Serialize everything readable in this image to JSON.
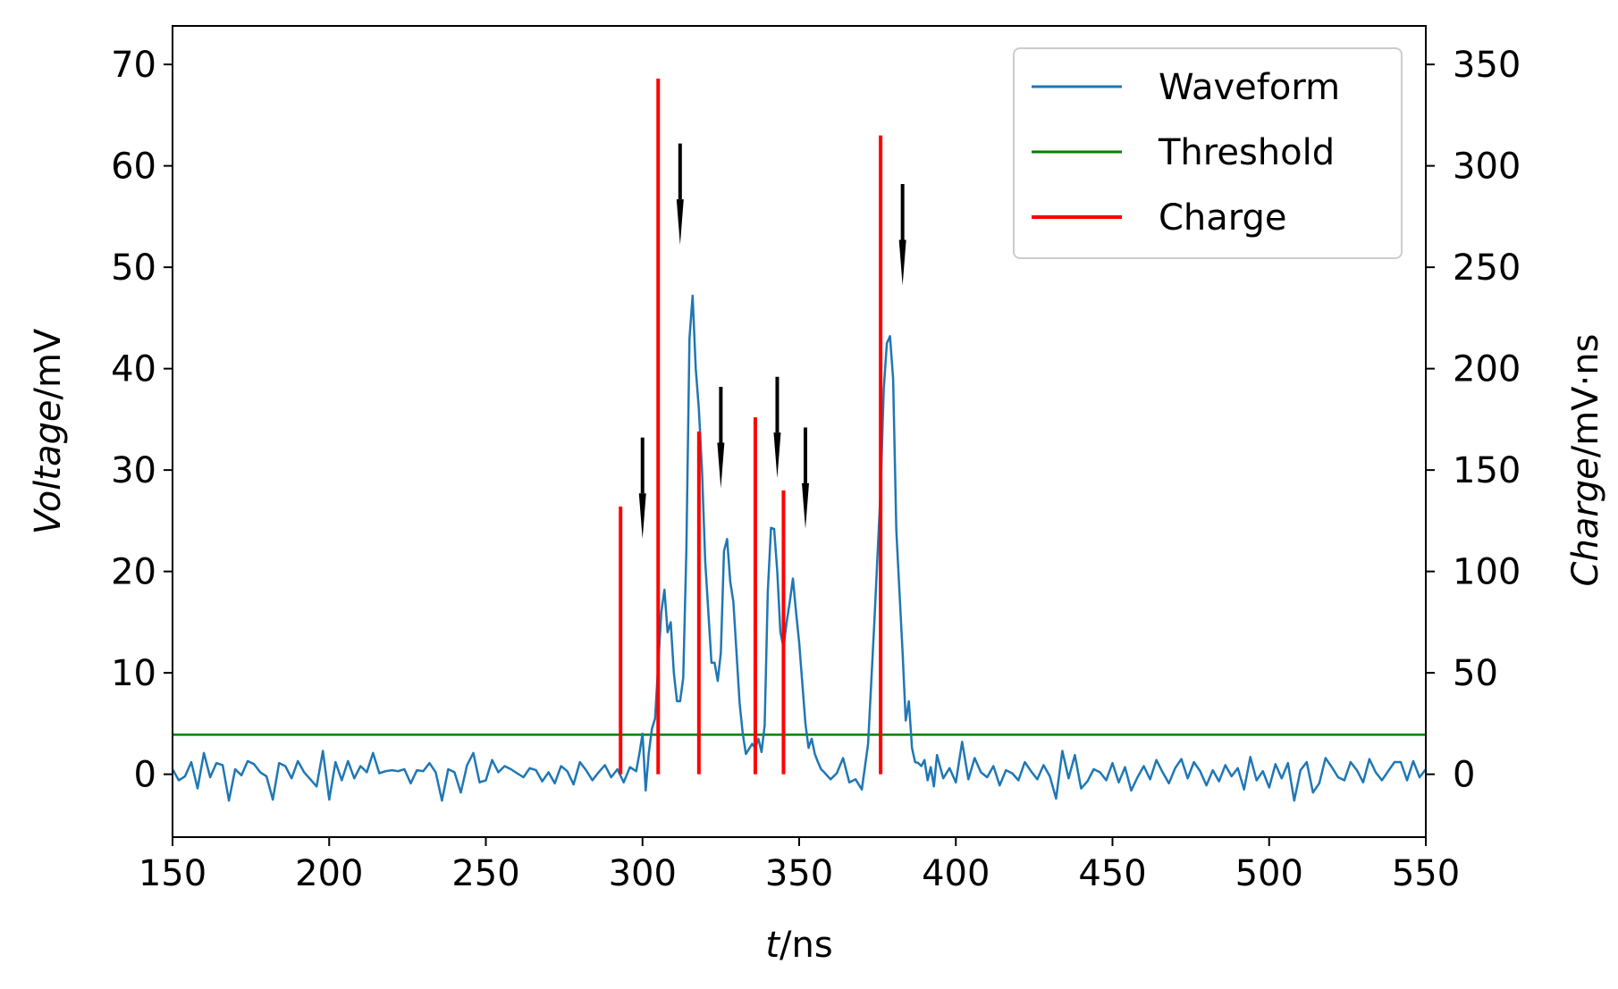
{
  "chart_data": {
    "type": "line",
    "xlabel": {
      "italic": "t",
      "unit": "/ns"
    },
    "ylabel_left": {
      "italic": "Voltage",
      "unit": "/mV"
    },
    "ylabel_right": {
      "italic": "Charge",
      "unit": "/mV·ns"
    },
    "xlim": [
      150,
      550
    ],
    "ylim_left": [
      -6.2,
      73.8
    ],
    "ylim_right": [
      -31,
      369
    ],
    "xticks": [
      150,
      200,
      250,
      300,
      350,
      400,
      450,
      500,
      550
    ],
    "yticks_left": [
      0,
      10,
      20,
      30,
      40,
      50,
      60,
      70
    ],
    "yticks_right": [
      0,
      50,
      100,
      150,
      200,
      250,
      300,
      350
    ],
    "grid": false,
    "legend_position": "top-right",
    "legend": [
      "Waveform",
      "Threshold",
      "Charge"
    ],
    "colors": {
      "waveform": "#1f77b4",
      "threshold": "#008000",
      "charge": "#ff0000",
      "arrow": "#000000"
    },
    "series": [
      {
        "name": "Waveform",
        "x": [
          150,
          152,
          154,
          156,
          158,
          160,
          162,
          164,
          166,
          168,
          170,
          172,
          174,
          176,
          178,
          180,
          182,
          184,
          186,
          188,
          190,
          192,
          194,
          196,
          198,
          200,
          202,
          204,
          206,
          208,
          210,
          212,
          214,
          216,
          218,
          220,
          222,
          224,
          226,
          228,
          230,
          232,
          234,
          236,
          238,
          240,
          242,
          244,
          246,
          248,
          250,
          252,
          254,
          256,
          258,
          260,
          262,
          264,
          266,
          268,
          270,
          272,
          274,
          276,
          278,
          280,
          282,
          284,
          286,
          288,
          290,
          292,
          294,
          296,
          298,
          299,
          300,
          301,
          302,
          303,
          304,
          306,
          307,
          308,
          309,
          310,
          311,
          312,
          313,
          314,
          315,
          316,
          317,
          318,
          319,
          320,
          321,
          322,
          323,
          324,
          325,
          326,
          327,
          328,
          329,
          330,
          331,
          332,
          333,
          334,
          335,
          336,
          337,
          338,
          339,
          340,
          341,
          342,
          343,
          344,
          345,
          346,
          347,
          348,
          349,
          350,
          351,
          352,
          353,
          354,
          355,
          356,
          357,
          358,
          360,
          362,
          364,
          366,
          368,
          370,
          372,
          374,
          376,
          377,
          378,
          379,
          380,
          381,
          382,
          383,
          384,
          385,
          386,
          387,
          388,
          389,
          390,
          391,
          392,
          393,
          394,
          396,
          398,
          400,
          402,
          404,
          406,
          408,
          410,
          412,
          414,
          416,
          418,
          420,
          422,
          424,
          426,
          428,
          430,
          432,
          434,
          436,
          438,
          440,
          442,
          444,
          446,
          448,
          450,
          452,
          454,
          456,
          458,
          460,
          462,
          464,
          466,
          468,
          470,
          472,
          474,
          476,
          478,
          480,
          482,
          484,
          486,
          488,
          490,
          492,
          494,
          496,
          498,
          500,
          502,
          504,
          506,
          508,
          510,
          512,
          514,
          516,
          518,
          520,
          522,
          524,
          526,
          528,
          530,
          532,
          534,
          536,
          538,
          540,
          542,
          544,
          546,
          548,
          550
        ],
        "y": [
          0.5,
          -0.6,
          -0.2,
          1.2,
          -1.4,
          2.1,
          -0.3,
          1.1,
          0.9,
          -2.6,
          0.5,
          -0.1,
          1.3,
          1.0,
          0.2,
          -0.2,
          -2.5,
          1.1,
          0.8,
          -0.4,
          1.3,
          0.2,
          -0.5,
          -1.2,
          2.3,
          -2.5,
          1.2,
          -0.6,
          1.3,
          -0.4,
          0.8,
          0.2,
          2.1,
          0.1,
          0.3,
          0.4,
          0.3,
          0.5,
          -0.9,
          0.4,
          0.3,
          1.1,
          0.2,
          -2.6,
          0.5,
          0.2,
          -1.8,
          0.9,
          2.1,
          -0.8,
          -0.6,
          1.4,
          0.2,
          0.8,
          0.5,
          0.1,
          -0.3,
          0.6,
          0.4,
          -0.7,
          0.2,
          -0.9,
          0.8,
          0.3,
          -1.0,
          1.2,
          0.4,
          -0.6,
          0.2,
          0.9,
          -0.3,
          0.5,
          -0.8,
          0.7,
          0.3,
          2.0,
          4.0,
          -1.6,
          2.1,
          4.5,
          5.5,
          16,
          18.2,
          14,
          15,
          10,
          7.2,
          7.2,
          9.5,
          22,
          43,
          47.2,
          40,
          36,
          30,
          21,
          16,
          11,
          11,
          9.2,
          12,
          22,
          23.2,
          19,
          17,
          12,
          7,
          4,
          2,
          2.5,
          3,
          2.6,
          3.5,
          2.2,
          4.8,
          18,
          24.3,
          24.2,
          20,
          14,
          12.5,
          15,
          17,
          19.3,
          16,
          13,
          9,
          5,
          2.6,
          3.5,
          2,
          1.2,
          0.5,
          0.2,
          -0.5,
          0.1,
          1.6,
          -0.8,
          -0.5,
          -1.5,
          3,
          15,
          28,
          38,
          42.5,
          43.2,
          39,
          24,
          18,
          12,
          5.3,
          7.2,
          2.6,
          1.2,
          1.1,
          0.8,
          1.4,
          -0.6,
          0.7,
          -1.2,
          1.9,
          -0.4,
          0.6,
          -0.8,
          3.2,
          -0.5,
          1.6,
          0.2,
          -0.3,
          0.8,
          -1.1,
          0.4,
          0.1,
          -0.6,
          1.2,
          0.3,
          -0.5,
          0.9,
          -0.2,
          -2.4,
          2.3,
          -0.4,
          1.9,
          -1.4,
          -0.7,
          0.5,
          0.2,
          -0.6,
          1.1,
          -0.8,
          0.7,
          -1.6,
          -0.3,
          0.8,
          -0.5,
          1.4,
          0.2,
          -0.9,
          0.6,
          1.5,
          -0.4,
          1.2,
          0.3,
          -1.1,
          0.4,
          -0.7,
          0.9,
          -0.2,
          0.6,
          -1.5,
          1.7,
          -0.6,
          0.3,
          -1.3,
          1.0,
          -0.4,
          1.1,
          -2.6,
          0.4,
          1.2,
          -1.8,
          -0.9,
          1.6,
          0.7,
          -0.3,
          -0.6,
          1.2,
          0.4,
          -0.8,
          1.5,
          0.2,
          -0.6,
          0.3,
          1.2,
          1.2,
          -0.6,
          1.3,
          -0.3,
          0.5
        ]
      },
      {
        "name": "Threshold",
        "y": 3.9
      },
      {
        "name": "Charge",
        "axis": "right",
        "x": [
          293,
          305,
          318,
          336,
          345,
          376
        ],
        "values": [
          132,
          343,
          169,
          176,
          140,
          315
        ]
      }
    ],
    "arrows": {
      "x": [
        300,
        312,
        325,
        343,
        352,
        383
      ],
      "tail_y": [
        33.2,
        62.2,
        38.2,
        39.2,
        34.2,
        58.2
      ],
      "head_y": [
        23.2,
        52.2,
        28.2,
        29.2,
        24.2,
        48.2
      ]
    }
  }
}
